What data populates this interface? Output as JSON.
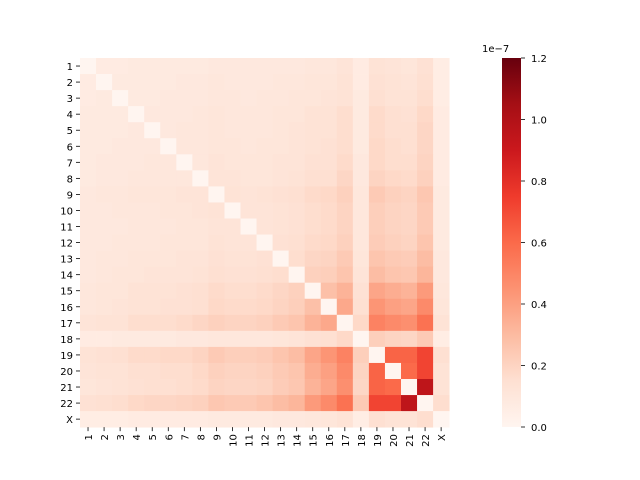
{
  "chart_data": {
    "type": "heatmap",
    "title": "",
    "xlabel": "",
    "ylabel": "",
    "colormap": "Reds",
    "labels": [
      "1",
      "2",
      "3",
      "4",
      "5",
      "6",
      "7",
      "8",
      "9",
      "10",
      "11",
      "12",
      "13",
      "14",
      "15",
      "16",
      "17",
      "18",
      "19",
      "20",
      "21",
      "22",
      "X"
    ],
    "colorbar": {
      "min": 0.0,
      "max": 1.2,
      "ticks": [
        "0.0",
        "0.2",
        "0.4",
        "0.6",
        "0.8",
        "1.0",
        "1.2"
      ],
      "tick_values": [
        0.0,
        0.2,
        0.4,
        0.6,
        0.8,
        1.0,
        1.2
      ],
      "offset_label": "1e−7"
    },
    "values": [
      [
        0.0,
        0.07,
        0.07,
        0.08,
        0.08,
        0.08,
        0.08,
        0.08,
        0.09,
        0.09,
        0.09,
        0.09,
        0.09,
        0.09,
        0.1,
        0.1,
        0.12,
        0.07,
        0.13,
        0.12,
        0.11,
        0.14,
        0.06
      ],
      [
        0.07,
        0.0,
        0.08,
        0.08,
        0.08,
        0.08,
        0.09,
        0.09,
        0.1,
        0.09,
        0.09,
        0.09,
        0.1,
        0.1,
        0.11,
        0.11,
        0.13,
        0.07,
        0.14,
        0.13,
        0.12,
        0.15,
        0.06
      ],
      [
        0.07,
        0.08,
        0.0,
        0.08,
        0.08,
        0.09,
        0.09,
        0.09,
        0.1,
        0.1,
        0.09,
        0.1,
        0.1,
        0.11,
        0.11,
        0.12,
        0.13,
        0.08,
        0.15,
        0.13,
        0.13,
        0.16,
        0.06
      ],
      [
        0.08,
        0.08,
        0.08,
        0.0,
        0.09,
        0.09,
        0.09,
        0.1,
        0.11,
        0.1,
        0.1,
        0.1,
        0.11,
        0.11,
        0.13,
        0.13,
        0.16,
        0.08,
        0.17,
        0.15,
        0.14,
        0.18,
        0.07
      ],
      [
        0.08,
        0.08,
        0.08,
        0.09,
        0.0,
        0.09,
        0.1,
        0.1,
        0.11,
        0.1,
        0.1,
        0.1,
        0.11,
        0.12,
        0.13,
        0.13,
        0.16,
        0.08,
        0.17,
        0.15,
        0.15,
        0.19,
        0.07
      ],
      [
        0.08,
        0.08,
        0.09,
        0.09,
        0.09,
        0.0,
        0.1,
        0.1,
        0.11,
        0.11,
        0.1,
        0.11,
        0.11,
        0.12,
        0.13,
        0.14,
        0.16,
        0.08,
        0.18,
        0.16,
        0.15,
        0.19,
        0.07
      ],
      [
        0.08,
        0.09,
        0.09,
        0.09,
        0.1,
        0.1,
        0.0,
        0.1,
        0.12,
        0.11,
        0.11,
        0.11,
        0.12,
        0.12,
        0.14,
        0.14,
        0.17,
        0.09,
        0.18,
        0.16,
        0.16,
        0.2,
        0.07
      ],
      [
        0.08,
        0.09,
        0.09,
        0.1,
        0.1,
        0.1,
        0.1,
        0.0,
        0.12,
        0.12,
        0.11,
        0.11,
        0.12,
        0.13,
        0.15,
        0.15,
        0.19,
        0.09,
        0.2,
        0.18,
        0.17,
        0.21,
        0.07
      ],
      [
        0.09,
        0.1,
        0.1,
        0.11,
        0.11,
        0.11,
        0.12,
        0.12,
        0.0,
        0.13,
        0.12,
        0.13,
        0.14,
        0.15,
        0.17,
        0.18,
        0.21,
        0.1,
        0.24,
        0.21,
        0.2,
        0.25,
        0.08
      ],
      [
        0.09,
        0.09,
        0.1,
        0.1,
        0.1,
        0.11,
        0.11,
        0.12,
        0.13,
        0.0,
        0.12,
        0.12,
        0.13,
        0.14,
        0.16,
        0.17,
        0.2,
        0.1,
        0.22,
        0.2,
        0.19,
        0.24,
        0.08
      ],
      [
        0.09,
        0.09,
        0.09,
        0.1,
        0.1,
        0.1,
        0.11,
        0.11,
        0.12,
        0.12,
        0.0,
        0.12,
        0.13,
        0.14,
        0.16,
        0.17,
        0.2,
        0.1,
        0.22,
        0.2,
        0.19,
        0.24,
        0.08
      ],
      [
        0.09,
        0.09,
        0.1,
        0.1,
        0.1,
        0.11,
        0.11,
        0.11,
        0.13,
        0.12,
        0.12,
        0.0,
        0.14,
        0.15,
        0.17,
        0.18,
        0.21,
        0.1,
        0.23,
        0.21,
        0.2,
        0.26,
        0.08
      ],
      [
        0.09,
        0.1,
        0.1,
        0.11,
        0.11,
        0.11,
        0.12,
        0.12,
        0.14,
        0.13,
        0.13,
        0.14,
        0.0,
        0.16,
        0.19,
        0.2,
        0.24,
        0.11,
        0.26,
        0.24,
        0.23,
        0.29,
        0.09
      ],
      [
        0.09,
        0.1,
        0.11,
        0.11,
        0.12,
        0.12,
        0.12,
        0.13,
        0.15,
        0.14,
        0.14,
        0.15,
        0.16,
        0.0,
        0.21,
        0.22,
        0.26,
        0.12,
        0.29,
        0.26,
        0.25,
        0.32,
        0.09
      ],
      [
        0.1,
        0.11,
        0.11,
        0.13,
        0.13,
        0.13,
        0.14,
        0.15,
        0.17,
        0.16,
        0.16,
        0.17,
        0.19,
        0.21,
        0.0,
        0.28,
        0.33,
        0.14,
        0.38,
        0.35,
        0.33,
        0.42,
        0.1
      ],
      [
        0.1,
        0.11,
        0.12,
        0.13,
        0.13,
        0.14,
        0.14,
        0.15,
        0.18,
        0.17,
        0.17,
        0.18,
        0.2,
        0.22,
        0.28,
        0.0,
        0.37,
        0.15,
        0.44,
        0.4,
        0.38,
        0.48,
        0.11
      ],
      [
        0.12,
        0.13,
        0.13,
        0.16,
        0.16,
        0.16,
        0.17,
        0.19,
        0.21,
        0.2,
        0.2,
        0.21,
        0.24,
        0.26,
        0.33,
        0.37,
        0.0,
        0.18,
        0.51,
        0.48,
        0.46,
        0.57,
        0.13
      ],
      [
        0.07,
        0.07,
        0.08,
        0.08,
        0.08,
        0.08,
        0.09,
        0.09,
        0.1,
        0.1,
        0.1,
        0.1,
        0.11,
        0.12,
        0.14,
        0.15,
        0.18,
        0.0,
        0.22,
        0.2,
        0.19,
        0.24,
        0.06
      ],
      [
        0.13,
        0.14,
        0.15,
        0.17,
        0.17,
        0.18,
        0.18,
        0.2,
        0.24,
        0.22,
        0.22,
        0.23,
        0.26,
        0.29,
        0.38,
        0.44,
        0.51,
        0.22,
        0.0,
        0.62,
        0.62,
        0.72,
        0.15
      ],
      [
        0.12,
        0.13,
        0.13,
        0.15,
        0.15,
        0.16,
        0.16,
        0.18,
        0.21,
        0.2,
        0.2,
        0.21,
        0.24,
        0.26,
        0.35,
        0.4,
        0.48,
        0.2,
        0.62,
        0.0,
        0.6,
        0.72,
        0.13
      ],
      [
        0.11,
        0.12,
        0.13,
        0.14,
        0.15,
        0.15,
        0.16,
        0.17,
        0.2,
        0.19,
        0.19,
        0.2,
        0.23,
        0.25,
        0.33,
        0.38,
        0.46,
        0.19,
        0.62,
        0.6,
        0.0,
        0.95,
        0.13
      ],
      [
        0.14,
        0.15,
        0.16,
        0.18,
        0.19,
        0.19,
        0.2,
        0.21,
        0.25,
        0.24,
        0.24,
        0.26,
        0.29,
        0.32,
        0.42,
        0.48,
        0.57,
        0.24,
        0.72,
        0.72,
        0.95,
        0.0,
        0.16
      ],
      [
        0.06,
        0.06,
        0.06,
        0.07,
        0.07,
        0.07,
        0.07,
        0.07,
        0.08,
        0.08,
        0.08,
        0.08,
        0.09,
        0.09,
        0.1,
        0.11,
        0.13,
        0.06,
        0.15,
        0.13,
        0.13,
        0.16,
        0.0
      ]
    ]
  }
}
